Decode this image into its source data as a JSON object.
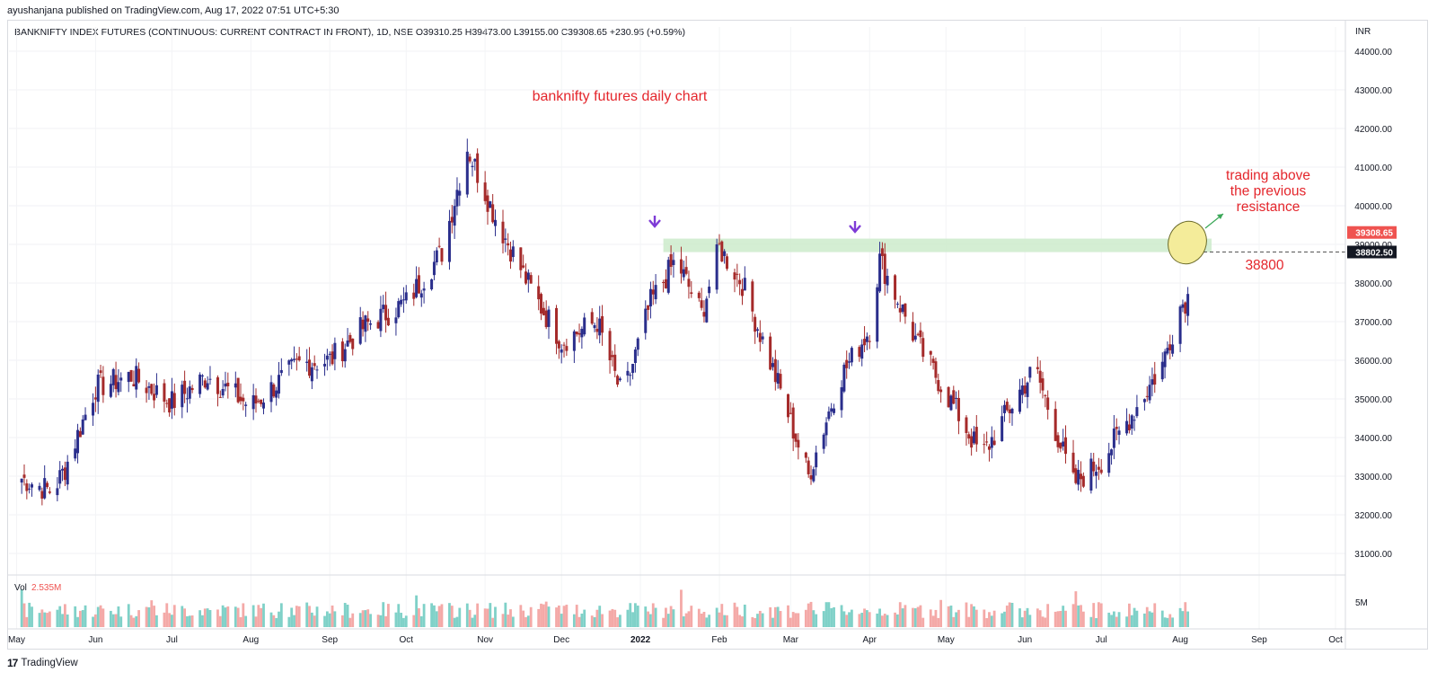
{
  "header": {
    "publisher": "ayushanjana published on TradingView.com, Aug 17, 2022 07:51 UTC+5:30",
    "symbol_line": "BANKNIFTY INDEX FUTURES (CONTINUOUS: CURRENT CONTRACT IN FRONT), 1D, NSE  O39310.25  H39473.00  L39155.00  C39308.65  +230.95 (+0.59%)"
  },
  "footer": {
    "brand": "TradingView",
    "logo_icon": "tradingview-logo-icon"
  },
  "annotations": {
    "title": "banknifty futures daily chart",
    "note_lines": [
      "trading above",
      "the previous",
      "resistance"
    ],
    "level_label": "38800",
    "arrow_down_icon": "purple-down-arrow-icon",
    "resistance_level": 38800,
    "resistance_band": [
      38800,
      39150
    ],
    "resistance_band_start": "2022-01-10"
  },
  "price_axis": {
    "currency": "INR",
    "ticks": [
      "31000.00",
      "32000.00",
      "33000.00",
      "34000.00",
      "35000.00",
      "36000.00",
      "37000.00",
      "38000.00",
      "39000.00",
      "40000.00",
      "41000.00",
      "42000.00",
      "43000.00",
      "44000.00"
    ],
    "last_price_label": "39308.65",
    "level_price_label": "38802.50",
    "last_price": 39308.65,
    "level_price": 38802.5
  },
  "volume": {
    "label": "Vol",
    "value": "2.535M",
    "axis_tick": "5M"
  },
  "time_axis": [
    "May",
    "Jun",
    "Jul",
    "Aug",
    "Sep",
    "Oct",
    "Nov",
    "Dec",
    "2022",
    "Feb",
    "Mar",
    "Apr",
    "May",
    "Jun",
    "Jul",
    "Aug",
    "Sep",
    "Oct"
  ],
  "colors": {
    "up": "#26a69a",
    "down": "#ef5350",
    "candle_up": "#2a2e8c",
    "candle_down": "#a52a2a",
    "annotation": "#e4262c",
    "arrow": "#7e3bd6",
    "band": "#cdebcb",
    "highlight": "#f4ec9a"
  },
  "chart_data": {
    "type": "candlestick",
    "instrument": "BANKNIFTY INDEX FUTURES (CONTINUOUS: CURRENT CONTRACT IN FRONT)",
    "interval": "1D",
    "ylim": [
      30500,
      44500
    ],
    "ohlc_last": {
      "open": 39310.25,
      "high": 39473.0,
      "low": 39155.0,
      "close": 39308.65
    },
    "change": "+230.95 (+0.59%)",
    "approx_close_series": [
      {
        "date": "2021-05-01",
        "close": 33000
      },
      {
        "date": "2021-05-15",
        "close": 32600
      },
      {
        "date": "2021-05-20",
        "close": 33200
      },
      {
        "date": "2021-06-01",
        "close": 35300
      },
      {
        "date": "2021-06-15",
        "close": 35600
      },
      {
        "date": "2021-07-01",
        "close": 34900
      },
      {
        "date": "2021-07-15",
        "close": 35600
      },
      {
        "date": "2021-08-01",
        "close": 34800
      },
      {
        "date": "2021-08-20",
        "close": 35900
      },
      {
        "date": "2021-09-01",
        "close": 36000
      },
      {
        "date": "2021-09-15",
        "close": 36900
      },
      {
        "date": "2021-10-01",
        "close": 37500
      },
      {
        "date": "2021-10-15",
        "close": 38800
      },
      {
        "date": "2021-10-25",
        "close": 41500
      },
      {
        "date": "2021-11-05",
        "close": 39700
      },
      {
        "date": "2021-11-20",
        "close": 37700
      },
      {
        "date": "2021-12-01",
        "close": 36500
      },
      {
        "date": "2021-12-15",
        "close": 37000
      },
      {
        "date": "2021-12-25",
        "close": 35000
      },
      {
        "date": "2022-01-05",
        "close": 37500
      },
      {
        "date": "2022-01-15",
        "close": 38600
      },
      {
        "date": "2022-01-25",
        "close": 37200
      },
      {
        "date": "2022-02-01",
        "close": 38900
      },
      {
        "date": "2022-02-10",
        "close": 38000
      },
      {
        "date": "2022-02-25",
        "close": 35200
      },
      {
        "date": "2022-03-08",
        "close": 33000
      },
      {
        "date": "2022-03-20",
        "close": 35500
      },
      {
        "date": "2022-04-01",
        "close": 36800
      },
      {
        "date": "2022-04-05",
        "close": 38600
      },
      {
        "date": "2022-04-20",
        "close": 36400
      },
      {
        "date": "2022-05-05",
        "close": 34700
      },
      {
        "date": "2022-05-15",
        "close": 33500
      },
      {
        "date": "2022-05-30",
        "close": 35200
      },
      {
        "date": "2022-06-05",
        "close": 35800
      },
      {
        "date": "2022-06-20",
        "close": 32800
      },
      {
        "date": "2022-07-01",
        "close": 33400
      },
      {
        "date": "2022-07-15",
        "close": 34800
      },
      {
        "date": "2022-07-25",
        "close": 35900
      },
      {
        "date": "2022-08-01",
        "close": 37400
      },
      {
        "date": "2022-08-10",
        "close": 38100
      },
      {
        "date": "2022-08-16",
        "close": 39308.65
      }
    ]
  }
}
